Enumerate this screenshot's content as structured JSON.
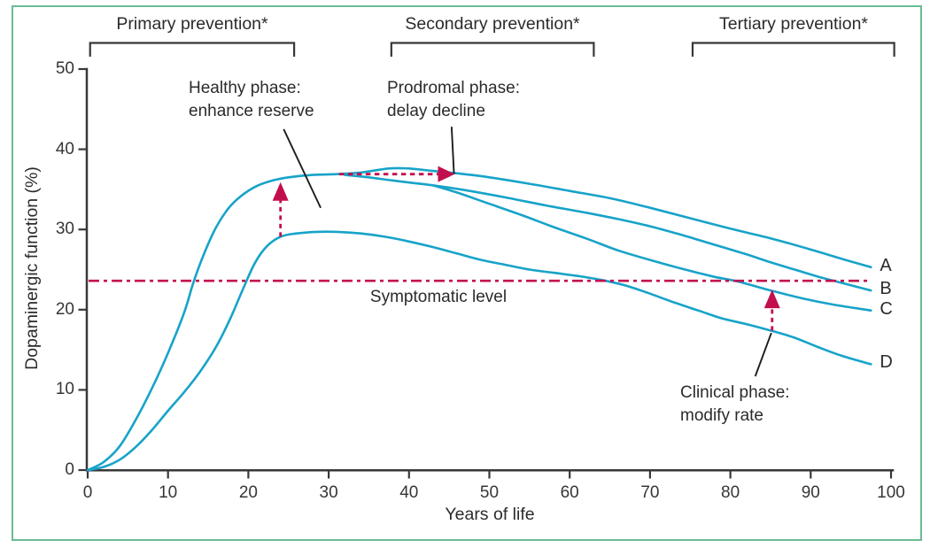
{
  "figure": {
    "border_color": "#6abc93",
    "background_color": "#ffffff"
  },
  "prevention_phases": [
    {
      "label": "Primary prevention*",
      "start_year": 0.3,
      "end_year": 25.7
    },
    {
      "label": "Secondary prevention*",
      "start_year": 37.8,
      "end_year": 63.0
    },
    {
      "label": "Tertiary prevention*",
      "start_year": 75.3,
      "end_year": 100.4
    }
  ],
  "chart_data": {
    "type": "line",
    "title": "",
    "xlabel": "Years of life",
    "ylabel": "Dopaminergic function (%)",
    "xlim": [
      0,
      100
    ],
    "ylim": [
      0,
      50
    ],
    "x_ticks": [
      0,
      10,
      20,
      30,
      40,
      50,
      60,
      70,
      80,
      90,
      100
    ],
    "y_ticks": [
      0,
      10,
      20,
      30,
      40,
      50
    ],
    "grid": false,
    "curve_color": "#17a3c9",
    "accent_color": "#c30e4e",
    "axis_color": "#383838",
    "symptomatic_level": {
      "value": 23.6,
      "label": "Symptomatic level"
    },
    "series": [
      {
        "name": "A",
        "points": [
          [
            0,
            0
          ],
          [
            2,
            1
          ],
          [
            4,
            3
          ],
          [
            6,
            6.3
          ],
          [
            8,
            10.2
          ],
          [
            10,
            14.6
          ],
          [
            12,
            19.6
          ],
          [
            13.2,
            23.5
          ],
          [
            14.5,
            27
          ],
          [
            16,
            30.3
          ],
          [
            17.5,
            32.6
          ],
          [
            19,
            34.1
          ],
          [
            21,
            35.4
          ],
          [
            23,
            36.1
          ],
          [
            25,
            36.5
          ],
          [
            28,
            36.8
          ],
          [
            31,
            36.9
          ],
          [
            34,
            37.1
          ],
          [
            37.5,
            37.6
          ],
          [
            40,
            37.6
          ],
          [
            43,
            37.3
          ],
          [
            46,
            37
          ],
          [
            50,
            36.5
          ],
          [
            55,
            35.7
          ],
          [
            60,
            34.8
          ],
          [
            65,
            33.9
          ],
          [
            70,
            32.7
          ],
          [
            75,
            31.4
          ],
          [
            80,
            30.1
          ],
          [
            85,
            28.9
          ],
          [
            90,
            27.5
          ],
          [
            94,
            26.3
          ],
          [
            97.5,
            25.3
          ]
        ]
      },
      {
        "name": "B",
        "points": [
          [
            32,
            36.8
          ],
          [
            35,
            36.5
          ],
          [
            38,
            36.1
          ],
          [
            40.5,
            35.8
          ],
          [
            43,
            35.5
          ],
          [
            47,
            34.9
          ],
          [
            52,
            34
          ],
          [
            57,
            33
          ],
          [
            62,
            32.1
          ],
          [
            66,
            31.3
          ],
          [
            70,
            30.4
          ],
          [
            74,
            29.3
          ],
          [
            78,
            28.1
          ],
          [
            82,
            26.9
          ],
          [
            85,
            25.9
          ],
          [
            88,
            25
          ],
          [
            91,
            24.1
          ],
          [
            94,
            23.3
          ],
          [
            97.5,
            22.4
          ]
        ]
      },
      {
        "name": "C",
        "points": [
          [
            43,
            35.5
          ],
          [
            46,
            34.6
          ],
          [
            50,
            33.2
          ],
          [
            54,
            31.8
          ],
          [
            58,
            30.3
          ],
          [
            62,
            28.9
          ],
          [
            66,
            27.4
          ],
          [
            70,
            26.2
          ],
          [
            74,
            25.1
          ],
          [
            78,
            24.1
          ],
          [
            81,
            23.5
          ],
          [
            85,
            22.4
          ],
          [
            89,
            21.4
          ],
          [
            93,
            20.6
          ],
          [
            97.5,
            19.9
          ]
        ]
      },
      {
        "name": "D",
        "points": [
          [
            0,
            0
          ],
          [
            2,
            0.4
          ],
          [
            4,
            1.3
          ],
          [
            6,
            2.9
          ],
          [
            8,
            5
          ],
          [
            10,
            7.4
          ],
          [
            12,
            9.7
          ],
          [
            14,
            12.3
          ],
          [
            16,
            15.4
          ],
          [
            17.8,
            19
          ],
          [
            19.3,
            22.5
          ],
          [
            20.8,
            25.8
          ],
          [
            22.3,
            27.9
          ],
          [
            24,
            29.1
          ],
          [
            26,
            29.5
          ],
          [
            28.5,
            29.7
          ],
          [
            31,
            29.7
          ],
          [
            34,
            29.5
          ],
          [
            37,
            29.1
          ],
          [
            40,
            28.5
          ],
          [
            43,
            27.8
          ],
          [
            46,
            27
          ],
          [
            49,
            26.2
          ],
          [
            52,
            25.6
          ],
          [
            55,
            25
          ],
          [
            58,
            24.6
          ],
          [
            61,
            24.2
          ],
          [
            64,
            23.7
          ],
          [
            67,
            23
          ],
          [
            70,
            22
          ],
          [
            73,
            20.9
          ],
          [
            76,
            19.9
          ],
          [
            79,
            18.9
          ],
          [
            82,
            18.2
          ],
          [
            85,
            17.4
          ],
          [
            88,
            16.5
          ],
          [
            91,
            15.3
          ],
          [
            94,
            14.2
          ],
          [
            97.5,
            13.2
          ]
        ]
      }
    ],
    "annotations": [
      {
        "name": "healthy-phase",
        "text": [
          "Healthy phase:",
          "enhance reserve"
        ],
        "arrow": {
          "type": "vertical",
          "year": 24,
          "from_value": 29.1,
          "to_value": 35.9
        },
        "leader": {
          "from": [
            24.4,
            42.5
          ],
          "to": [
            29.0,
            32.7
          ]
        }
      },
      {
        "name": "prodromal-phase",
        "text": [
          "Prodromal phase:",
          "delay decline"
        ],
        "arrow": {
          "type": "horizontal",
          "value": 36.9,
          "from_year": 31.3,
          "to_year": 45.7
        },
        "leader": {
          "from": [
            45.3,
            42.8
          ],
          "to": [
            45.6,
            36.9
          ]
        }
      },
      {
        "name": "clinical-phase",
        "text": [
          "Clinical phase:",
          "modify rate"
        ],
        "arrow": {
          "type": "vertical",
          "year": 85.2,
          "from_value": 17.4,
          "to_value": 22.5
        },
        "leader": {
          "from": [
            83.1,
            11.7
          ],
          "to": [
            85.1,
            17.1
          ]
        }
      }
    ]
  }
}
